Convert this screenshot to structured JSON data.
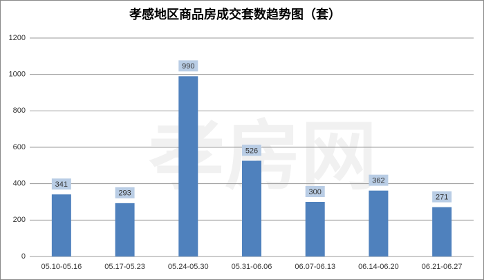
{
  "chart_data": {
    "type": "bar",
    "title": "孝感地区商品房成交套数趋势图（套）",
    "watermark": "孝房网",
    "categories": [
      "05.10-05.16",
      "05.17-05.23",
      "05.24-05.30",
      "05.31-06.06",
      "06.07-06.13",
      "06.14-06.20",
      "06.21-06.27"
    ],
    "values": [
      341,
      293,
      990,
      526,
      300,
      362,
      271
    ],
    "color": "#4f81bd",
    "label_box_color": "#b9cde5",
    "ylim": [
      0,
      1200
    ],
    "yticks": [
      0,
      200,
      400,
      600,
      800,
      1000,
      1200
    ],
    "grid": true
  }
}
